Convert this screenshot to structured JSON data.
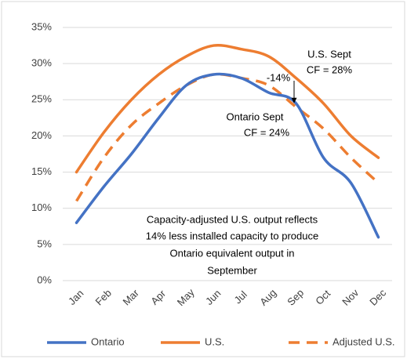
{
  "chart_data": {
    "type": "line",
    "categories": [
      "Jan",
      "Feb",
      "Mar",
      "Apr",
      "May",
      "Jun",
      "Jul",
      "Aug",
      "Sep",
      "Oct",
      "Nov",
      "Dec"
    ],
    "series": [
      {
        "name": "Ontario",
        "color": "#4472c4",
        "dash": false,
        "values": [
          8,
          13,
          17.5,
          22.5,
          27,
          28.5,
          28,
          26,
          24.5,
          17,
          13.5,
          6
        ]
      },
      {
        "name": "U.S.",
        "color": "#ed7d31",
        "dash": false,
        "values": [
          15,
          20.5,
          25,
          28.5,
          31,
          32.5,
          32,
          31,
          28,
          24.5,
          20,
          17
        ]
      },
      {
        "name": "Adjusted U.S.",
        "color": "#ed7d31",
        "dash": true,
        "values": [
          11,
          17,
          21.5,
          24.5,
          27,
          28.5,
          28,
          27,
          24,
          21,
          17,
          13.5
        ]
      }
    ],
    "ylim": [
      0,
      35
    ],
    "yticks": [
      {
        "value": 0,
        "label": "0%"
      },
      {
        "value": 5,
        "label": "5%"
      },
      {
        "value": 10,
        "label": "10%"
      },
      {
        "value": 15,
        "label": "15%"
      },
      {
        "value": 20,
        "label": "20%"
      },
      {
        "value": 25,
        "label": "25%"
      },
      {
        "value": 30,
        "label": "30%"
      },
      {
        "value": 35,
        "label": "35%"
      }
    ],
    "grid": true,
    "legend": "bottom",
    "annotations": {
      "us_sept": [
        "U.S. Sept",
        "CF = 28%"
      ],
      "ontario_sept": [
        "Ontario Sept",
        "CF = 24%"
      ],
      "diff": "-14%",
      "note": [
        "Capacity-adjusted U.S. output reflects",
        "14% less installed capacity to produce",
        "Ontario equivalent output in",
        "September"
      ]
    }
  }
}
